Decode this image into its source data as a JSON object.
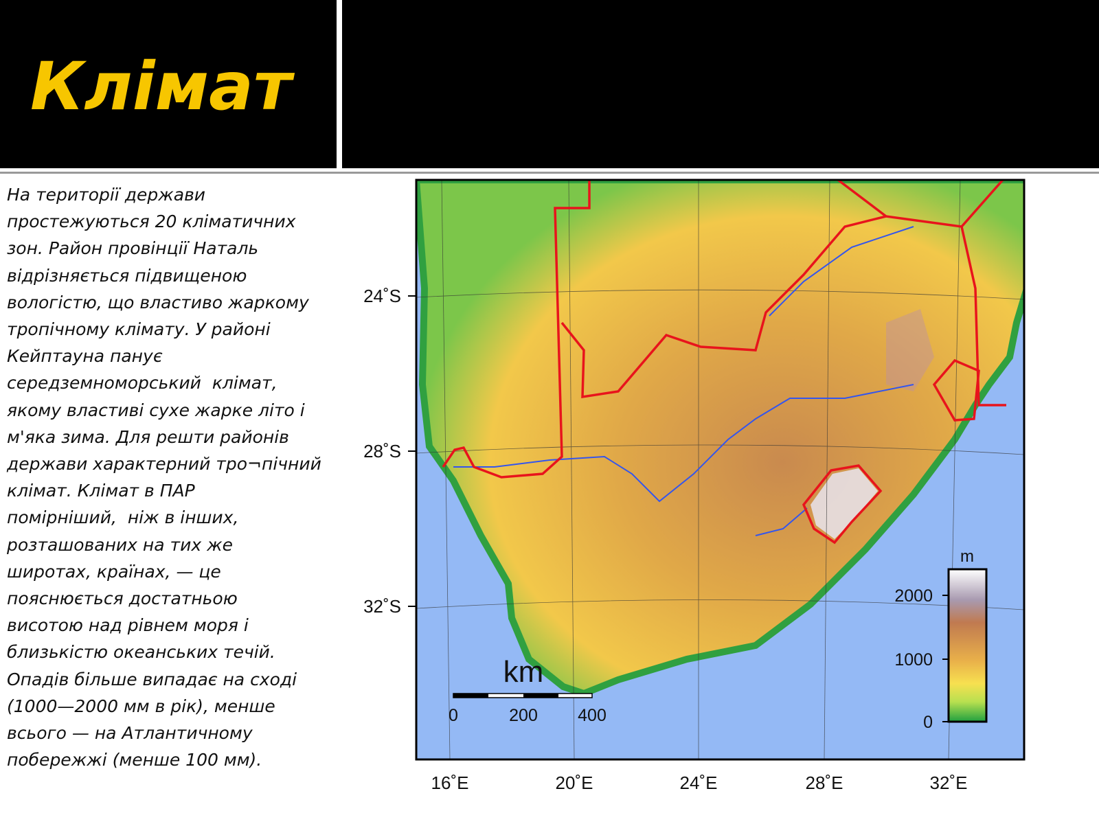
{
  "slide": {
    "title": "Клімат",
    "text_lines": [
      "На території держави",
      "простежуються 20 кліматичних",
      "зон. Район провінції Наталь",
      "відрізняється підвищеною",
      "вологістю, що властиво жаркому",
      "тропічному клімату. У районі",
      "Кейптауна панує",
      "середземноморський  клімат,",
      "якому властиві сухе жарке літо і",
      "м'яка зима. Для решти районів",
      "держави характерний тро¬пічний",
      "клімат. Клімат в ПАР",
      "помірніший,  ніж в інших,",
      "розташованих на тих же",
      "широтах, країнах, — це",
      "пояснюється достатньою",
      "висотою над рівнем моря і",
      "близькістю океанських течій.",
      "Опадів більше випадає на сході",
      "(1000—2000 мм в рік), менше",
      "всього — на Атлантичному",
      "побережжі (менше 100 мм)."
    ]
  },
  "map": {
    "latitude_labels": [
      "24˚S",
      "28˚S",
      "32˚S"
    ],
    "longitude_labels": [
      "16˚E",
      "20˚E",
      "24˚E",
      "28˚E",
      "32˚E"
    ],
    "scale_unit": "km",
    "scale_labels": [
      "0",
      "200",
      "400"
    ],
    "legend_unit": "m",
    "legend_labels": [
      "2000",
      "1000",
      "0"
    ]
  }
}
